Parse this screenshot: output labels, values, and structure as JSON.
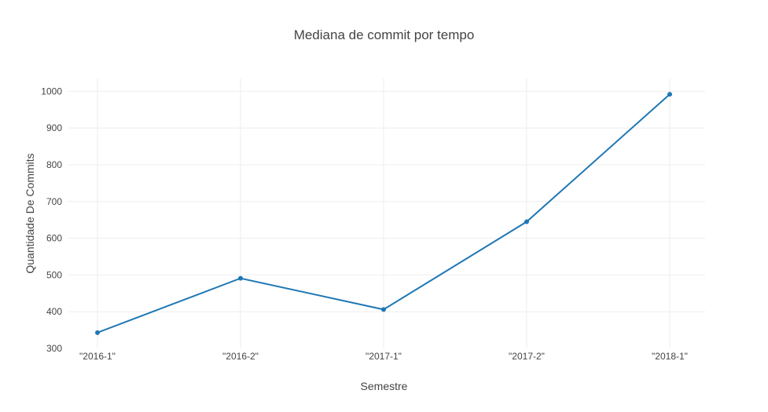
{
  "chart_data": {
    "type": "line",
    "title": "Mediana de commit por tempo",
    "xlabel": "Semestre",
    "ylabel": "Quantidade De Commits",
    "categories": [
      "\"2016-1\"",
      "\"2016-2\"",
      "\"2017-1\"",
      "\"2017-2\"",
      "\"2018-1\""
    ],
    "series": [
      {
        "values": [
          343,
          491,
          406,
          645,
          992
        ]
      }
    ],
    "ylim": [
      300,
      1035
    ],
    "yticks": [
      300,
      400,
      500,
      600,
      700,
      800,
      900,
      1000
    ],
    "grid": true,
    "legend": "none",
    "colors": {
      "line": "#1f77b4",
      "grid": "#eeeeee",
      "text": "#444444"
    }
  }
}
